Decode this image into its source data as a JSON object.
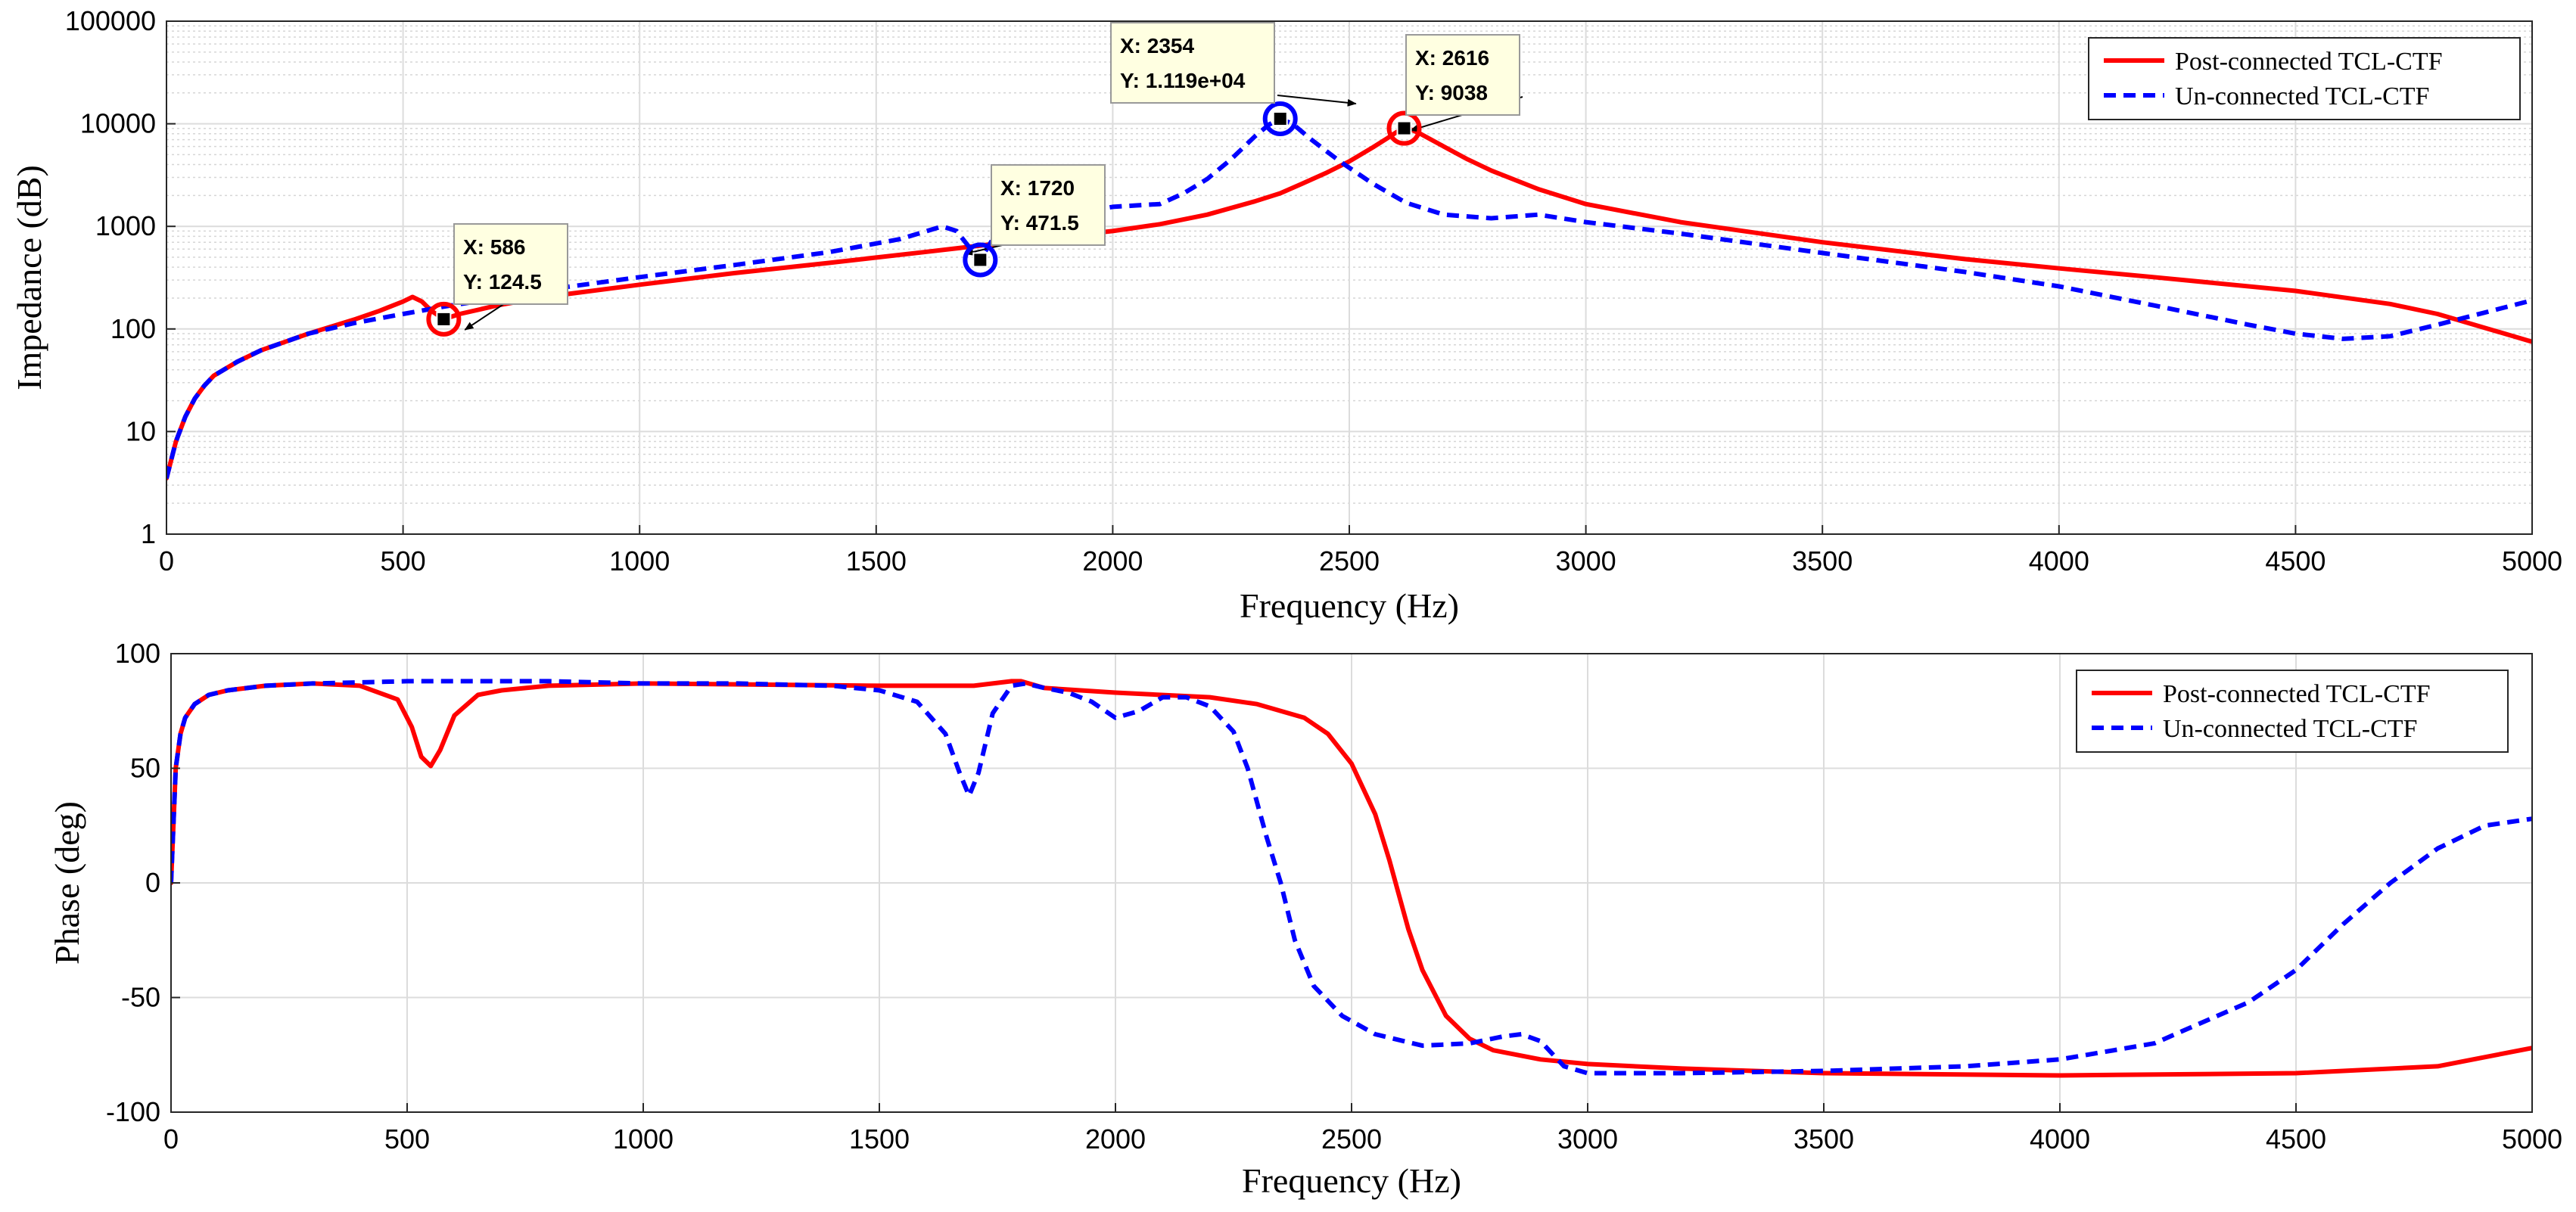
{
  "chart_data": [
    {
      "type": "line",
      "yscale": "log",
      "xlabel": "Frequency (Hz)",
      "ylabel": "Impedance (dB)",
      "xlim": [
        0,
        5000
      ],
      "ylim": [
        1,
        100000
      ],
      "xticks": [
        0,
        500,
        1000,
        1500,
        2000,
        2500,
        3000,
        3500,
        4000,
        4500,
        5000
      ],
      "yticks": [
        1,
        10,
        100,
        1000,
        10000,
        100000
      ],
      "grid": true,
      "minor_grid": true,
      "legend_position": "top-right",
      "series": [
        {
          "name": "Post-connected TCL-CTF",
          "color": "#ff0000",
          "style": "solid",
          "x": [
            0,
            20,
            40,
            60,
            80,
            100,
            150,
            200,
            300,
            400,
            450,
            500,
            520,
            540,
            560,
            586,
            620,
            700,
            800,
            1000,
            1200,
            1400,
            1600,
            1720,
            1800,
            2000,
            2100,
            2200,
            2300,
            2354,
            2400,
            2450,
            2500,
            2550,
            2580,
            2600,
            2616,
            2630,
            2650,
            2700,
            2750,
            2800,
            2900,
            3000,
            3200,
            3500,
            3800,
            4000,
            4200,
            4500,
            4700,
            4800,
            5000
          ],
          "y": [
            3.5,
            8,
            14,
            21,
            28,
            35,
            48,
            62,
            90,
            125,
            150,
            185,
            205,
            185,
            150,
            124.5,
            140,
            170,
            205,
            270,
            350,
            440,
            560,
            650,
            720,
            900,
            1050,
            1300,
            1750,
            2100,
            2600,
            3300,
            4300,
            5900,
            7200,
            8300,
            9038,
            8800,
            8000,
            6000,
            4500,
            3500,
            2300,
            1650,
            1100,
            700,
            480,
            390,
            320,
            235,
            175,
            140,
            75
          ]
        },
        {
          "name": "Un-connected TCL-CTF",
          "color": "#0000ff",
          "style": "dashed",
          "x": [
            0,
            20,
            40,
            60,
            80,
            100,
            150,
            200,
            300,
            400,
            500,
            586,
            700,
            800,
            1000,
            1200,
            1400,
            1550,
            1600,
            1640,
            1670,
            1700,
            1720,
            1750,
            1800,
            1900,
            2000,
            2050,
            2100,
            2150,
            2200,
            2250,
            2300,
            2330,
            2354,
            2380,
            2420,
            2480,
            2550,
            2620,
            2700,
            2800,
            2900,
            3000,
            3200,
            3500,
            3800,
            4000,
            4200,
            4400,
            4500,
            4600,
            4700,
            4800,
            5000
          ],
          "y": [
            3.5,
            8,
            14,
            21,
            28,
            35,
            48,
            62,
            90,
            115,
            140,
            165,
            200,
            240,
            320,
            420,
            560,
            750,
            880,
            1000,
            900,
            600,
            471.5,
            800,
            1100,
            1300,
            1550,
            1600,
            1650,
            2100,
            2900,
            4500,
            7500,
            9800,
            11190,
            10000,
            7000,
            4300,
            2600,
            1700,
            1300,
            1200,
            1300,
            1100,
            850,
            550,
            360,
            260,
            170,
            110,
            90,
            80,
            85,
            110,
            190
          ]
        }
      ],
      "datatips": [
        {
          "x": 586,
          "y": 124.5,
          "label_x": "X: 586",
          "label_y": "Y: 124.5",
          "color": "#ff0000"
        },
        {
          "x": 1720,
          "y": 471.5,
          "label_x": "X: 1720",
          "label_y": "Y: 471.5",
          "color": "#0000ff"
        },
        {
          "x": 2354,
          "y": 11190,
          "label_x": "X: 2354",
          "label_y": "Y: 1.119e+04",
          "color": "#0000ff"
        },
        {
          "x": 2616,
          "y": 9038,
          "label_x": "X: 2616",
          "label_y": "Y: 9038",
          "color": "#ff0000"
        }
      ]
    },
    {
      "type": "line",
      "yscale": "linear",
      "xlabel": "Frequency (Hz)",
      "ylabel": "Phase (deg)",
      "xlim": [
        0,
        5000
      ],
      "ylim": [
        -100,
        100
      ],
      "xticks": [
        0,
        500,
        1000,
        1500,
        2000,
        2500,
        3000,
        3500,
        4000,
        4500,
        5000
      ],
      "yticks": [
        -100,
        -50,
        0,
        50,
        100
      ],
      "grid": true,
      "legend_position": "top-right",
      "series": [
        {
          "name": "Post-connected TCL-CTF",
          "color": "#ff0000",
          "style": "solid",
          "x": [
            0,
            5,
            10,
            20,
            30,
            50,
            80,
            120,
            200,
            300,
            400,
            480,
            510,
            530,
            550,
            570,
            600,
            650,
            700,
            800,
            1000,
            1500,
            1700,
            1780,
            1800,
            1850,
            2000,
            2200,
            2300,
            2400,
            2450,
            2500,
            2550,
            2580,
            2600,
            2620,
            2650,
            2700,
            2750,
            2800,
            2900,
            3000,
            3200,
            3500,
            4000,
            4500,
            4800,
            5000
          ],
          "y": [
            0,
            25,
            50,
            65,
            72,
            78,
            82,
            84,
            86,
            87,
            86,
            80,
            68,
            55,
            51,
            58,
            73,
            82,
            84,
            86,
            87,
            86,
            86,
            88,
            88,
            85,
            83,
            81,
            78,
            72,
            65,
            52,
            30,
            10,
            -5,
            -20,
            -38,
            -58,
            -68,
            -73,
            -77,
            -79,
            -81,
            -83,
            -84,
            -83,
            -80,
            -72
          ]
        },
        {
          "name": "Un-connected TCL-CTF",
          "color": "#0000ff",
          "style": "dashed",
          "x": [
            0,
            5,
            10,
            20,
            30,
            50,
            80,
            120,
            200,
            300,
            500,
            800,
            1000,
            1200,
            1400,
            1500,
            1580,
            1640,
            1670,
            1690,
            1710,
            1740,
            1780,
            1810,
            1850,
            1900,
            1950,
            2000,
            2050,
            2100,
            2150,
            2200,
            2250,
            2280,
            2320,
            2350,
            2380,
            2420,
            2480,
            2550,
            2650,
            2750,
            2820,
            2860,
            2900,
            2950,
            3000,
            3200,
            3500,
            3800,
            4000,
            4200,
            4400,
            4500,
            4600,
            4700,
            4800,
            4900,
            5000
          ],
          "y": [
            0,
            25,
            50,
            65,
            72,
            78,
            82,
            84,
            86,
            87,
            88,
            88,
            87,
            87,
            86,
            84,
            79,
            65,
            48,
            38,
            48,
            74,
            86,
            87,
            85,
            83,
            79,
            72,
            75,
            81,
            81,
            77,
            66,
            50,
            20,
            0,
            -25,
            -45,
            -58,
            -66,
            -71,
            -70,
            -67,
            -66,
            -69,
            -80,
            -83,
            -83,
            -82,
            -80,
            -77,
            -70,
            -52,
            -38,
            -18,
            0,
            15,
            25,
            28
          ]
        }
      ]
    }
  ]
}
